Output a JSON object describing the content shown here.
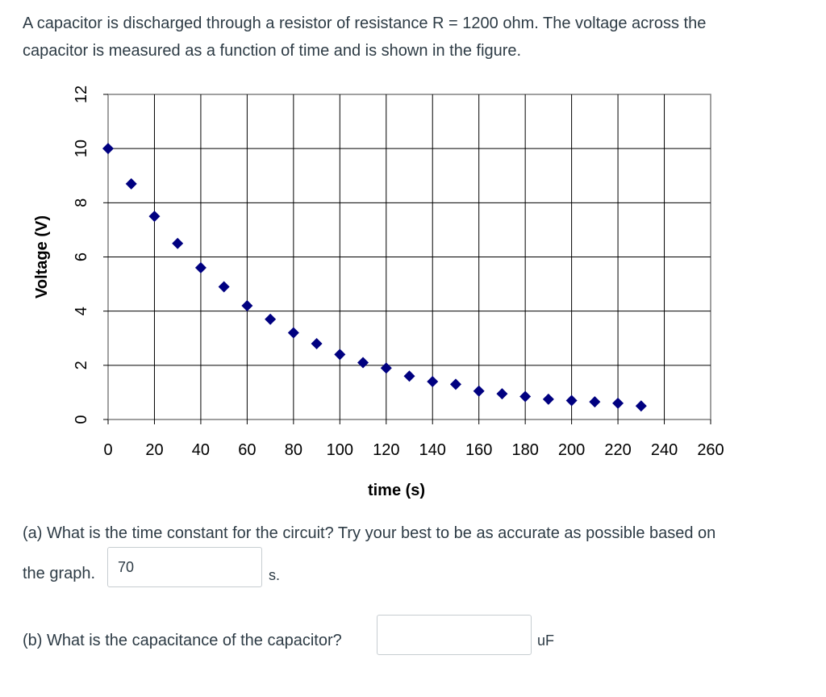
{
  "question": {
    "intro_line1": "A capacitor is discharged through a resistor of resistance R = 1200 ohm.  The voltage across the",
    "intro_line2": "capacitor is measured as a function of time and is shown in the figure."
  },
  "chart_data": {
    "type": "scatter",
    "xlabel": "time (s)",
    "ylabel": "Voltage (V)",
    "xlim": [
      0,
      260
    ],
    "ylim": [
      0,
      12
    ],
    "xticks": [
      "0",
      "20",
      "40",
      "60",
      "80",
      "100",
      "120",
      "140",
      "160",
      "180",
      "200",
      "220",
      "240",
      "260"
    ],
    "yticks": [
      "0",
      "2",
      "4",
      "6",
      "8",
      "10",
      "12"
    ],
    "grid": true,
    "marker": "diamond",
    "marker_color": "#000080",
    "series": [
      {
        "x": [
          0,
          10,
          20,
          30,
          40,
          50,
          60,
          70,
          80,
          90,
          100,
          110,
          120,
          130,
          140,
          150,
          160,
          170,
          180,
          190,
          200,
          210,
          220,
          230
        ],
        "y": [
          10.0,
          8.7,
          7.5,
          6.5,
          5.6,
          4.9,
          4.2,
          3.7,
          3.2,
          2.8,
          2.4,
          2.1,
          1.9,
          1.6,
          1.4,
          1.3,
          1.05,
          0.95,
          0.85,
          0.75,
          0.7,
          0.65,
          0.6,
          0.5
        ]
      }
    ]
  },
  "part_a": {
    "text_line1": "(a) What is the time constant for the circuit?  Try your best to be as accurate as possible based on",
    "text_line2": "the graph.",
    "value": "70",
    "unit": "s."
  },
  "part_b": {
    "text": "(b) What is the capacitance of the capacitor?",
    "value": "",
    "unit": "uF"
  }
}
